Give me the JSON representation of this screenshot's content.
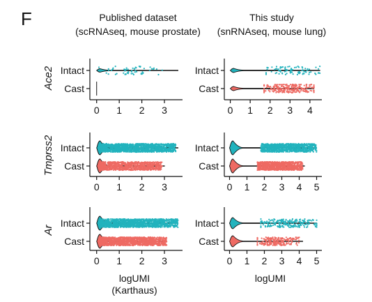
{
  "figure": {
    "panel_label": "F",
    "column_titles": [
      [
        "Published dataset",
        "(scRNAseq, mouse prostate)"
      ],
      [
        "This study",
        "(snRNAseq, mouse lung)"
      ]
    ],
    "row_genes": [
      "Ace2",
      "Tmprss2",
      "Ar"
    ],
    "x_axis_labels": [
      [
        "logUMI",
        "(Karthaus)"
      ],
      [
        "logUMI"
      ]
    ]
  },
  "colors": {
    "Intact": "#22b3bd",
    "Cast": "#ee6a63"
  },
  "chart_data": [
    {
      "type": "violin+strip",
      "gene": "Ace2",
      "dataset": "Published dataset",
      "categories": [
        "Intact",
        "Cast"
      ],
      "xlim": [
        -0.3,
        3.8
      ],
      "xticks": [
        0,
        1,
        2,
        3
      ],
      "groups": [
        {
          "name": "Intact",
          "range": [
            0.0,
            3.6
          ],
          "point_range": [
            0.1,
            2.9
          ],
          "n_points": 60,
          "zero_spike": 0.25
        },
        {
          "name": "Cast",
          "range": [
            0.0,
            0.0
          ],
          "point_range": null,
          "n_points": 0,
          "zero_spike": 0.0
        }
      ]
    },
    {
      "type": "violin+strip",
      "gene": "Ace2",
      "dataset": "This study",
      "categories": [
        "Intact",
        "Cast"
      ],
      "xlim": [
        -0.3,
        4.6
      ],
      "xticks": [
        0,
        1,
        2,
        3,
        4
      ],
      "groups": [
        {
          "name": "Intact",
          "range": [
            0.0,
            4.5
          ],
          "point_range": [
            1.8,
            4.5
          ],
          "n_points": 90,
          "zero_spike": 0.3
        },
        {
          "name": "Cast",
          "range": [
            0.0,
            4.2
          ],
          "point_range": [
            1.7,
            4.2
          ],
          "n_points": 260,
          "zero_spike": 0.3
        }
      ]
    },
    {
      "type": "violin+strip",
      "gene": "Tmprss2",
      "dataset": "Published dataset",
      "categories": [
        "Intact",
        "Cast"
      ],
      "xlim": [
        -0.3,
        3.8
      ],
      "xticks": [
        0,
        1,
        2,
        3
      ],
      "groups": [
        {
          "name": "Intact",
          "range": [
            0.0,
            3.6
          ],
          "point_range": [
            0.1,
            3.5
          ],
          "n_points": 1300,
          "zero_spike": 1.0
        },
        {
          "name": "Cast",
          "range": [
            0.0,
            3.0
          ],
          "point_range": [
            0.1,
            2.9
          ],
          "n_points": 900,
          "zero_spike": 1.0
        }
      ]
    },
    {
      "type": "violin+strip",
      "gene": "Tmprss2",
      "dataset": "This study",
      "categories": [
        "Intact",
        "Cast"
      ],
      "xlim": [
        -0.3,
        5.3
      ],
      "xticks": [
        0,
        1,
        2,
        3,
        4,
        5
      ],
      "groups": [
        {
          "name": "Intact",
          "range": [
            0.0,
            5.0
          ],
          "point_range": [
            1.8,
            5.0
          ],
          "n_points": 900,
          "zero_spike": 1.0
        },
        {
          "name": "Cast",
          "range": [
            0.0,
            4.3
          ],
          "point_range": [
            1.6,
            4.2
          ],
          "n_points": 900,
          "zero_spike": 1.0
        }
      ]
    },
    {
      "type": "violin+strip",
      "gene": "Ar",
      "dataset": "Published dataset",
      "categories": [
        "Intact",
        "Cast"
      ],
      "xlim": [
        -0.3,
        3.8
      ],
      "xticks": [
        0,
        1,
        2,
        3
      ],
      "groups": [
        {
          "name": "Intact",
          "range": [
            0.0,
            3.6
          ],
          "point_range": [
            0.1,
            3.6
          ],
          "n_points": 1300,
          "zero_spike": 1.0
        },
        {
          "name": "Cast",
          "range": [
            0.0,
            3.1
          ],
          "point_range": [
            0.1,
            3.1
          ],
          "n_points": 1300,
          "zero_spike": 1.0
        }
      ]
    },
    {
      "type": "violin+strip",
      "gene": "Ar",
      "dataset": "This study",
      "categories": [
        "Intact",
        "Cast"
      ],
      "xlim": [
        -0.3,
        5.3
      ],
      "xticks": [
        0,
        1,
        2,
        3,
        4,
        5
      ],
      "groups": [
        {
          "name": "Intact",
          "range": [
            0.0,
            5.0
          ],
          "point_range": [
            1.8,
            5.0
          ],
          "n_points": 220,
          "zero_spike": 0.8
        },
        {
          "name": "Cast",
          "range": [
            0.0,
            4.2
          ],
          "point_range": [
            1.6,
            4.0
          ],
          "n_points": 220,
          "zero_spike": 0.8
        }
      ]
    }
  ]
}
